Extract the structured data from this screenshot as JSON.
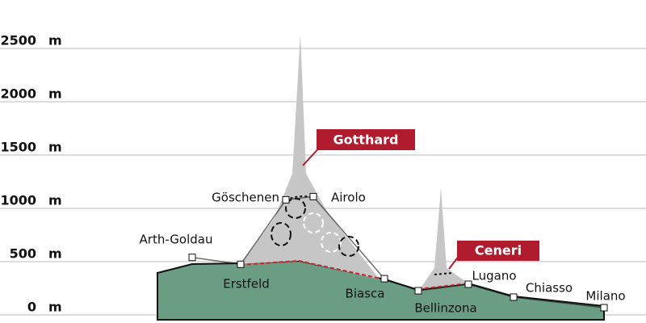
{
  "chart_data": {
    "type": "line",
    "y_unit": "m",
    "categories": [
      "Arth-Goldau",
      "Erstfeld",
      "Göschenen",
      "Airolo",
      "Biasca",
      "Bellinzona",
      "Lugano",
      "Chiasso",
      "Milano"
    ],
    "values": [
      540,
      475,
      1080,
      1110,
      340,
      227,
      288,
      167,
      68
    ],
    "ylim": [
      0,
      2500
    ],
    "yticks": [
      0,
      500,
      1000,
      1500,
      2000,
      2500
    ],
    "grid": true,
    "color": "#111111",
    "annotations": [
      "Gotthard",
      "Ceneri"
    ]
  }
}
